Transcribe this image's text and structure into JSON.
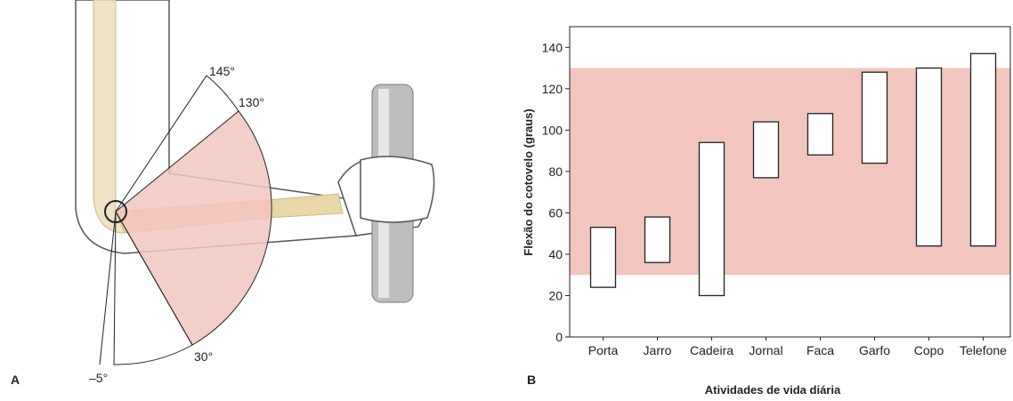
{
  "panel_labels": [
    "A",
    "B"
  ],
  "illustration": {
    "angle_labels": [
      "145°",
      "130°",
      "30°",
      "–5°"
    ]
  },
  "chart_data": {
    "type": "range-bar",
    "y_label": "Flexão do cotovelo (graus)",
    "x_label": "Atividades de vida diária",
    "categories": [
      "Porta",
      "Jarro",
      "Cadeira",
      "Jornal",
      "Faca",
      "Garfo",
      "Copo",
      "Telefone"
    ],
    "lows": [
      24,
      36,
      20,
      77,
      88,
      84,
      44,
      44
    ],
    "highs": [
      53,
      58,
      94,
      104,
      108,
      128,
      130,
      137
    ],
    "color": "#ffffff",
    "band": [
      30,
      130
    ],
    "band_color": "#f2c6be",
    "ylim": [
      0,
      150
    ],
    "yticks": [
      0,
      20,
      40,
      60,
      80,
      100,
      120,
      140
    ]
  }
}
